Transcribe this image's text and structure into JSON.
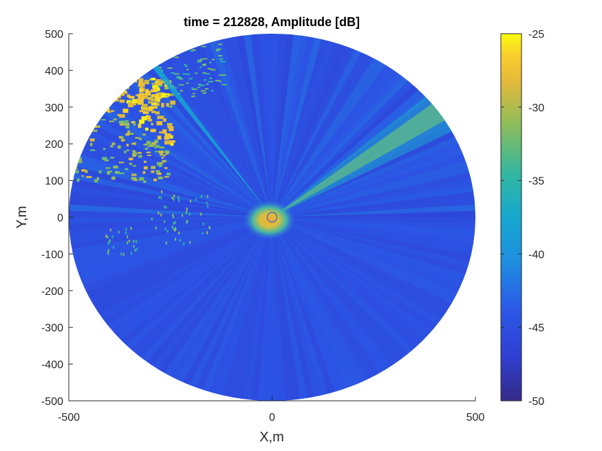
{
  "chart_data": {
    "type": "heatmap",
    "title": "time = 212828, Amplitude [dB]",
    "xlabel": "X,m",
    "ylabel": "Y,m",
    "xlim": [
      -500,
      500
    ],
    "ylim": [
      -500,
      500
    ],
    "x_ticks": [
      -500,
      0,
      500
    ],
    "y_ticks": [
      500,
      400,
      300,
      200,
      100,
      0,
      -100,
      -200,
      -300,
      -400,
      -500
    ],
    "x_tick_labels": [
      "-500",
      "0",
      "500"
    ],
    "y_tick_labels": [
      "500",
      "400",
      "300",
      "200",
      "100",
      "0",
      "-100",
      "-200",
      "-300",
      "-400",
      "-500"
    ],
    "colorbar": {
      "label": "Amplitude [dB]",
      "colormap": "parula",
      "clim": [
        -50,
        -25
      ],
      "ticks": [
        -25,
        -30,
        -35,
        -40,
        -45,
        -50
      ],
      "tick_labels": [
        "-25",
        "-30",
        "-35",
        "-40",
        "-45",
        "-50"
      ]
    },
    "sweep_radius": 500,
    "background_level": -45,
    "features": [
      {
        "kind": "return-cluster",
        "level": -25,
        "x_range": [
          -500,
          -250
        ],
        "y_range": [
          100,
          380
        ]
      },
      {
        "kind": "beam",
        "level": -38,
        "bearing_deg": -35
      },
      {
        "kind": "beam",
        "level": -31,
        "bearing_deg": 55
      },
      {
        "kind": "center-bright-spot",
        "level": -28,
        "radius": 40
      }
    ],
    "grid": false,
    "legend": "none"
  }
}
